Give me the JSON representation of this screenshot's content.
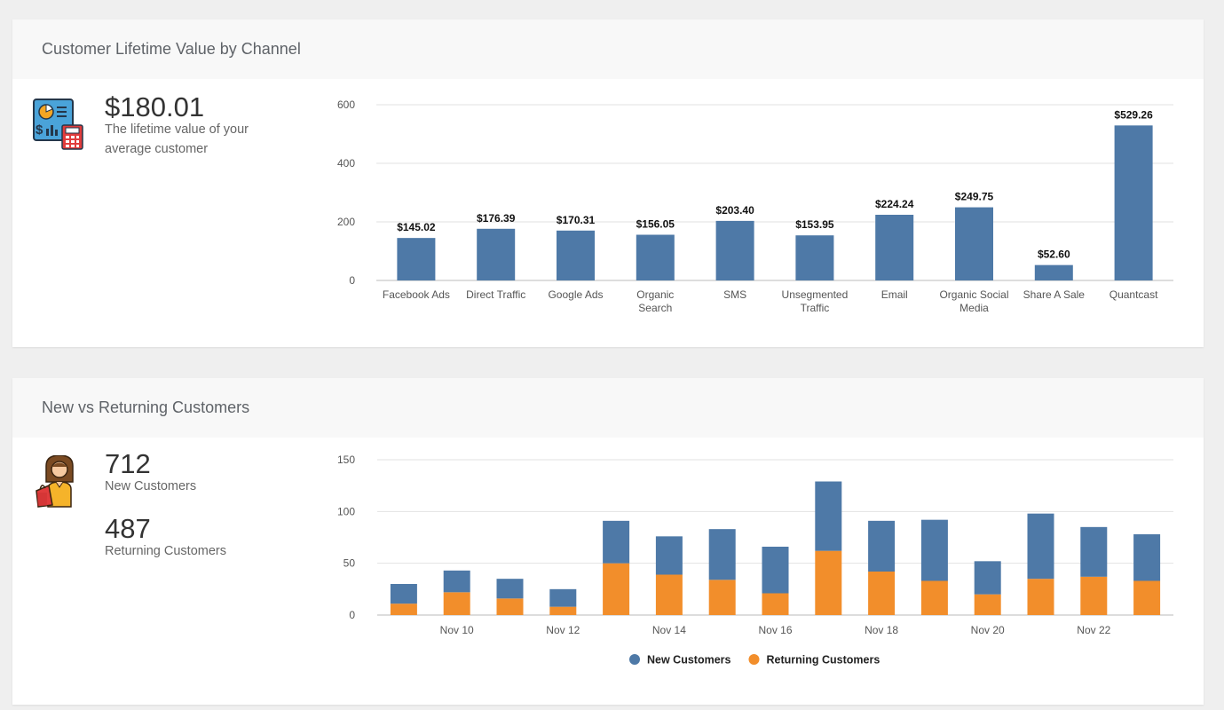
{
  "ltv_card": {
    "title": "Customer Lifetime Value by Channel",
    "stat_value": "$180.01",
    "stat_line1": "The lifetime value of your",
    "stat_line2": "average customer",
    "icon": "analytics-report-icon"
  },
  "customers_card": {
    "title": "New vs Returning Customers",
    "new_value": "712",
    "new_label": "New Customers",
    "returning_value": "487",
    "returning_label": "Returning Customers",
    "icon": "shopper-woman-icon"
  },
  "colors": {
    "blue": "#4e79a7",
    "orange": "#f28e2b"
  },
  "chart_data": [
    {
      "type": "bar",
      "categories": [
        [
          "Facebook Ads"
        ],
        [
          "Direct Traffic"
        ],
        [
          "Google Ads"
        ],
        [
          "Organic",
          "Search"
        ],
        [
          "SMS"
        ],
        [
          "Unsegmented",
          "Traffic"
        ],
        [
          "Email"
        ],
        [
          "Organic Social",
          "Media"
        ],
        [
          "Share A Sale"
        ],
        [
          "Quantcast"
        ]
      ],
      "values": [
        145.02,
        176.39,
        170.31,
        156.05,
        203.4,
        153.95,
        224.24,
        249.75,
        52.6,
        529.26
      ],
      "data_labels": [
        "$145.02",
        "$176.39",
        "$170.31",
        "$156.05",
        "$203.40",
        "$153.95",
        "$224.24",
        "$249.75",
        "$52.60",
        "$529.26"
      ],
      "yticks": [
        0,
        200,
        400,
        600
      ],
      "ylim": [
        0,
        600
      ],
      "grid": true
    },
    {
      "type": "bar",
      "stacked": true,
      "x": [
        "Nov 9",
        "Nov 10",
        "Nov 11",
        "Nov 12",
        "Nov 13",
        "Nov 14",
        "Nov 15",
        "Nov 16",
        "Nov 17",
        "Nov 18",
        "Nov 19",
        "Nov 20",
        "Nov 21",
        "Nov 22",
        "Nov 23"
      ],
      "xtick_labels": [
        "Nov 10",
        "Nov 12",
        "Nov 14",
        "Nov 16",
        "Nov 18",
        "Nov 20",
        "Nov 22"
      ],
      "series": [
        {
          "name": "Returning Customers",
          "color": "#f28e2b",
          "values": [
            11,
            22,
            16,
            8,
            50,
            39,
            34,
            21,
            62,
            42,
            33,
            20,
            35,
            37,
            33
          ]
        },
        {
          "name": "New Customers",
          "color": "#4e79a7",
          "values": [
            19,
            21,
            19,
            17,
            41,
            37,
            49,
            45,
            67,
            49,
            59,
            32,
            63,
            48,
            45
          ]
        }
      ],
      "legend_order": [
        "New Customers",
        "Returning Customers"
      ],
      "yticks": [
        0,
        50,
        100,
        150
      ],
      "ylim": [
        0,
        150
      ],
      "legend_position": "bottom-center",
      "grid": true
    }
  ]
}
